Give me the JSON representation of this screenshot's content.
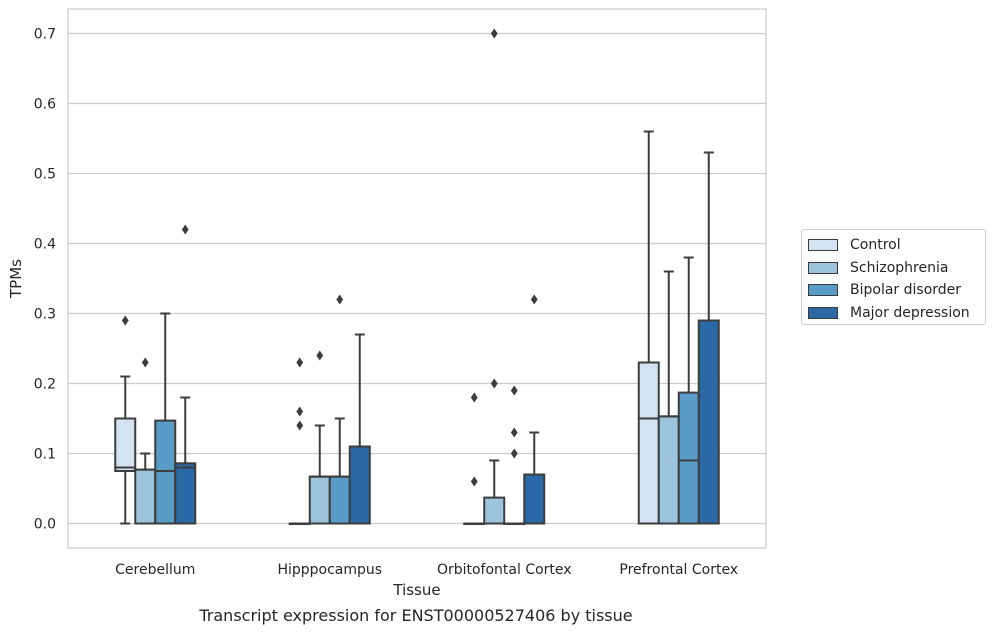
{
  "chart_data": {
    "type": "boxplot",
    "title": "",
    "caption": "Transcript expression for ENST00000527406 by tissue",
    "xlabel": "Tissue",
    "ylabel": "TPMs",
    "ylim": [
      -0.035,
      0.735
    ],
    "yticks": [
      0.0,
      0.1,
      0.2,
      0.3,
      0.4,
      0.5,
      0.6,
      0.7
    ],
    "ytick_labels": [
      "0.0",
      "0.1",
      "0.2",
      "0.3",
      "0.4",
      "0.5",
      "0.6",
      "0.7"
    ],
    "grid": "horizontal",
    "legend_position": "right",
    "categories": [
      "Cerebellum",
      "Hipppocampus",
      "Orbitofontal Cortex",
      "Prefrontal Cortex"
    ],
    "series": [
      {
        "name": "Control",
        "color": "#d3e3f2",
        "boxes": [
          {
            "whislo": 0.0,
            "q1": 0.075,
            "med": 0.08,
            "q3": 0.15,
            "whishi": 0.21,
            "fliers": [
              0.29
            ]
          },
          {
            "whislo": 0.0,
            "q1": 0.0,
            "med": 0.0,
            "q3": 0.0,
            "whishi": 0.0,
            "fliers": [
              0.14,
              0.16,
              0.23
            ]
          },
          {
            "whislo": 0.0,
            "q1": 0.0,
            "med": 0.0,
            "q3": 0.0,
            "whishi": 0.0,
            "fliers": [
              0.06,
              0.18
            ]
          },
          {
            "whislo": 0.0,
            "q1": 0.0,
            "med": 0.15,
            "q3": 0.23,
            "whishi": 0.56,
            "fliers": []
          }
        ]
      },
      {
        "name": "Schizophrenia",
        "color": "#9cc4dd",
        "boxes": [
          {
            "whislo": 0.0,
            "q1": 0.0,
            "med": 0.077,
            "q3": 0.077,
            "whishi": 0.1,
            "fliers": [
              0.23
            ]
          },
          {
            "whislo": 0.0,
            "q1": 0.0,
            "med": 0.067,
            "q3": 0.067,
            "whishi": 0.14,
            "fliers": [
              0.24
            ]
          },
          {
            "whislo": 0.0,
            "q1": 0.0,
            "med": 0.0,
            "q3": 0.037,
            "whishi": 0.09,
            "fliers": [
              0.2,
              0.7
            ]
          },
          {
            "whislo": 0.0,
            "q1": 0.0,
            "med": 0.153,
            "q3": 0.153,
            "whishi": 0.36,
            "fliers": []
          }
        ]
      },
      {
        "name": "Bipolar disorder",
        "color": "#5a9cc8",
        "boxes": [
          {
            "whislo": 0.0,
            "q1": 0.0,
            "med": 0.075,
            "q3": 0.147,
            "whishi": 0.3,
            "fliers": []
          },
          {
            "whislo": 0.0,
            "q1": 0.0,
            "med": 0.067,
            "q3": 0.067,
            "whishi": 0.15,
            "fliers": [
              0.32
            ]
          },
          {
            "whislo": 0.0,
            "q1": 0.0,
            "med": 0.0,
            "q3": 0.0,
            "whishi": 0.0,
            "fliers": [
              0.1,
              0.13,
              0.19
            ]
          },
          {
            "whislo": 0.0,
            "q1": 0.0,
            "med": 0.09,
            "q3": 0.187,
            "whishi": 0.38,
            "fliers": []
          }
        ]
      },
      {
        "name": "Major depression",
        "color": "#2a69a6",
        "boxes": [
          {
            "whislo": 0.0,
            "q1": 0.0,
            "med": 0.08,
            "q3": 0.086,
            "whishi": 0.18,
            "fliers": [
              0.42
            ]
          },
          {
            "whislo": 0.0,
            "q1": 0.0,
            "med": 0.11,
            "q3": 0.11,
            "whishi": 0.27,
            "fliers": []
          },
          {
            "whislo": 0.0,
            "q1": 0.0,
            "med": 0.07,
            "q3": 0.07,
            "whishi": 0.13,
            "fliers": [
              0.32
            ]
          },
          {
            "whislo": 0.0,
            "q1": 0.0,
            "med": 0.29,
            "q3": 0.29,
            "whishi": 0.53,
            "fliers": []
          }
        ]
      }
    ]
  }
}
